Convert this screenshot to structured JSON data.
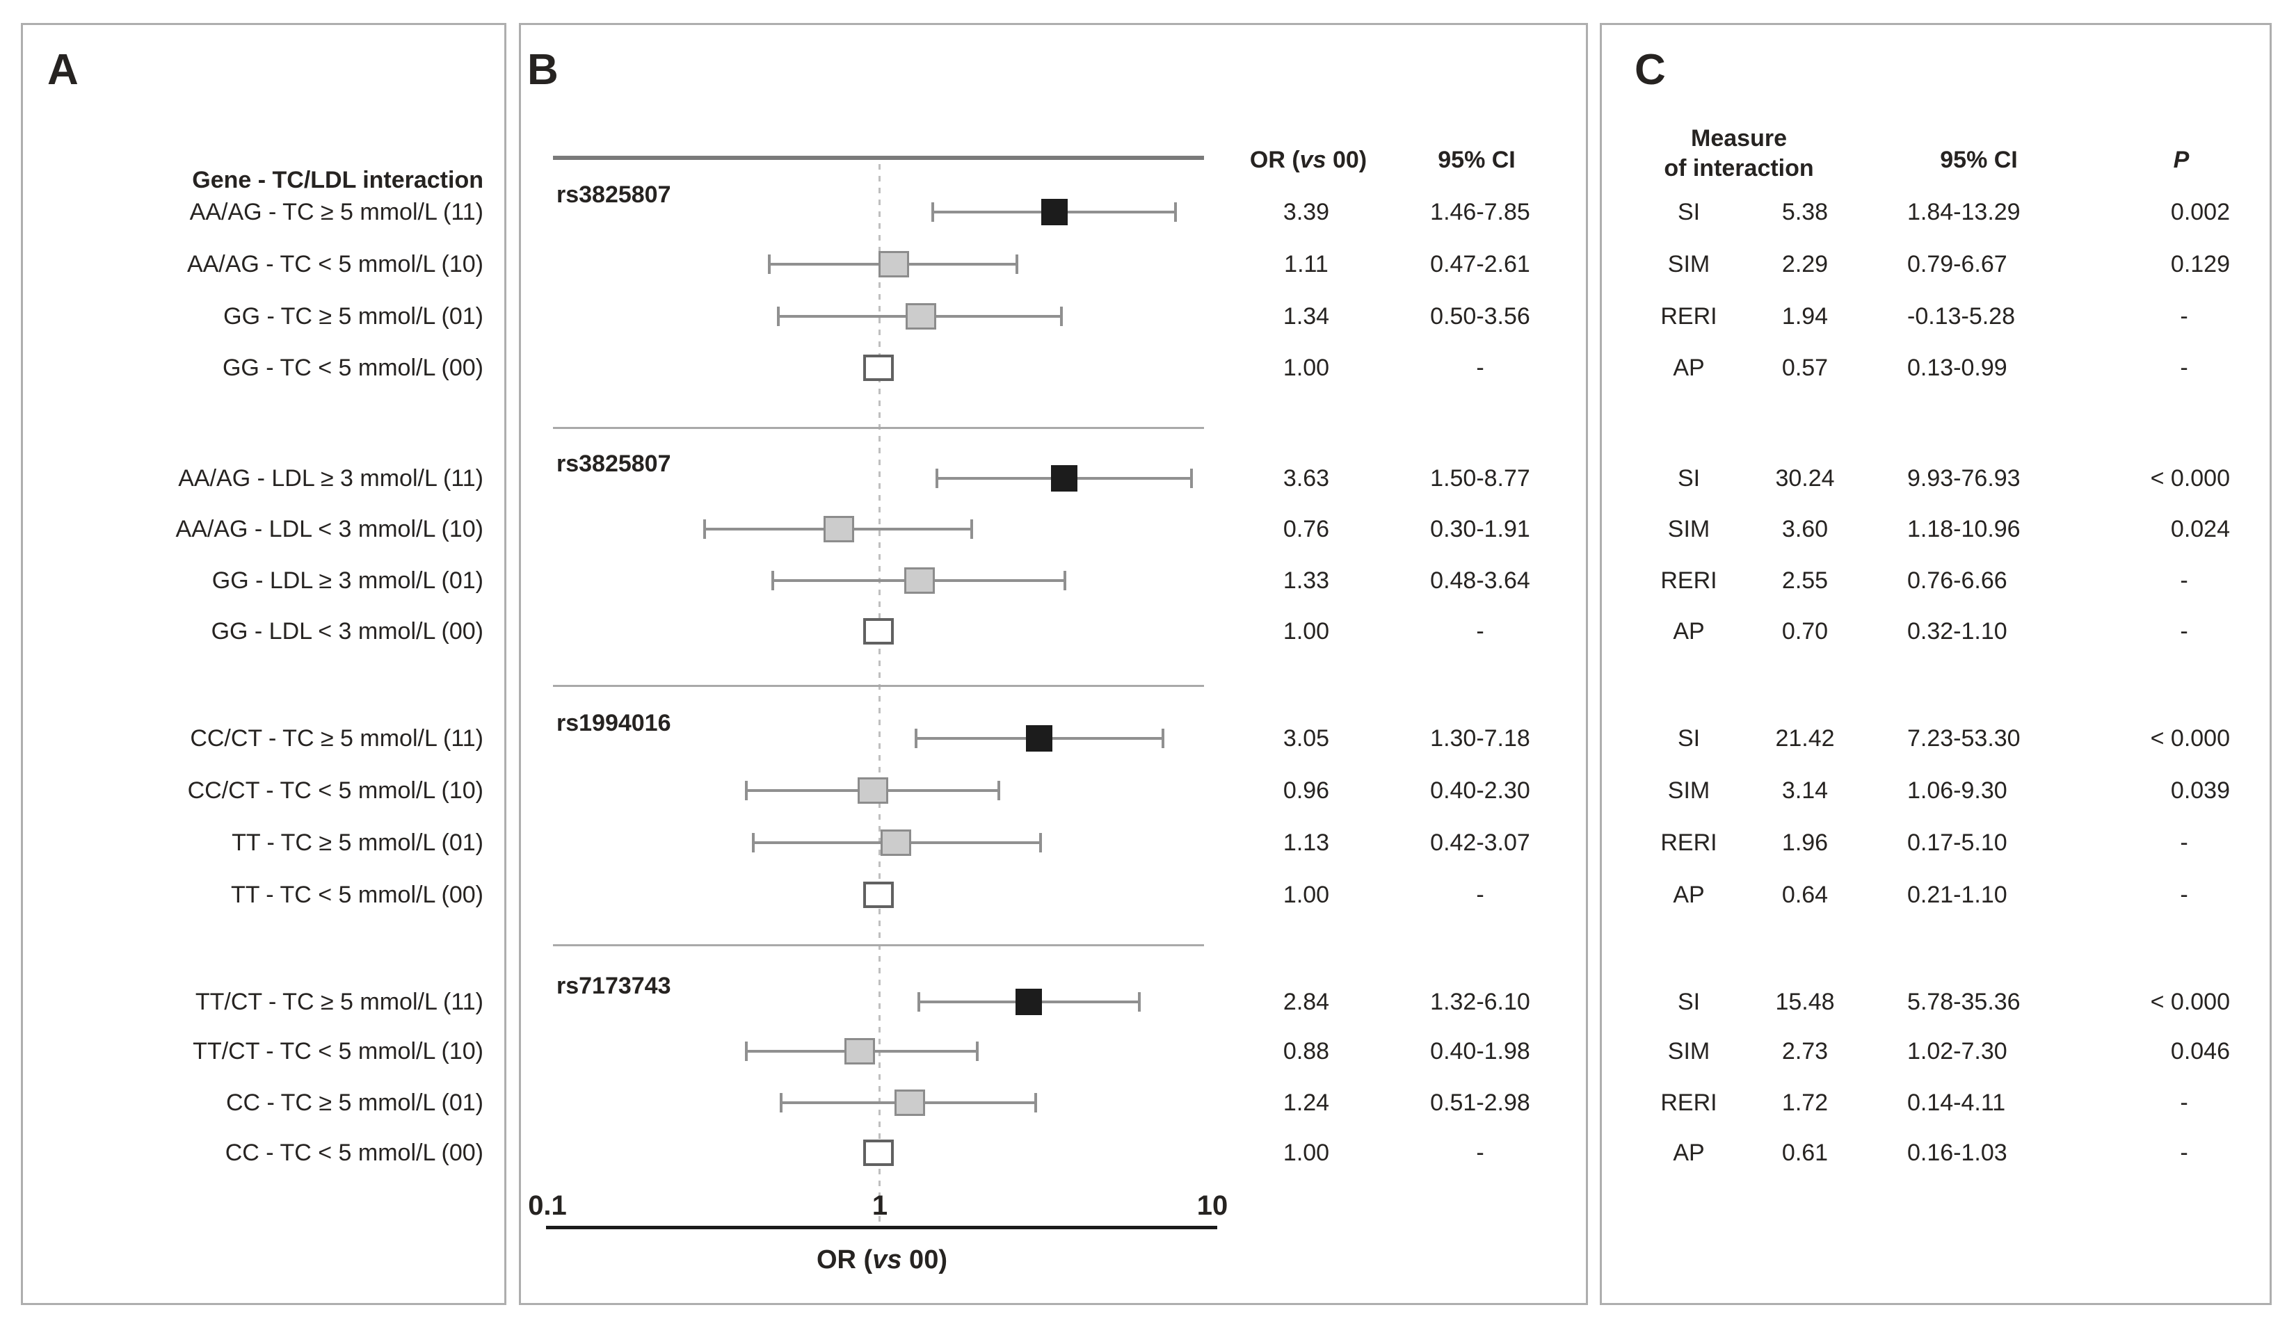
{
  "figure": {
    "panel_a_title": "A",
    "panel_b_title": "B",
    "panel_c_title": "C",
    "panel_a_header": "Gene - TC/LDL interaction",
    "b_or_header": {
      "pre": "OR (",
      "italic": "vs",
      "post": " 00)"
    },
    "b_ci_header": "95% CI",
    "c_header": {
      "line1": "Measure",
      "line2": "of interaction",
      "ci": "95% CI",
      "p": "P"
    }
  },
  "chart_data": {
    "type": "scatter",
    "variant": "forest-plot",
    "x_axis": {
      "scale": "log",
      "min": 0.1,
      "max": 10,
      "ticks": [
        0.1,
        1,
        10
      ],
      "tick_labels": [
        "0.1",
        "1",
        "10"
      ],
      "label": "OR (vs 00)",
      "label_pre": "OR (",
      "label_italic": "vs",
      "label_post": " 00)",
      "reference_line": 1
    },
    "legend": {
      "or_column": "OR (vs 00)",
      "ci_column": "95% CI"
    },
    "groups": [
      {
        "snp": "rs3825807",
        "rows": [
          {
            "label": "AA/AG - TC ≥ 5 mmol/L (11)",
            "or": "3.39",
            "or_value": 3.39,
            "ci": "1.46-7.85",
            "ci_low": 1.46,
            "ci_high": 7.85,
            "marker": "black"
          },
          {
            "label": "AA/AG - TC < 5 mmol/L (10)",
            "or": "1.11",
            "or_value": 1.11,
            "ci": "0.47-2.61",
            "ci_low": 0.47,
            "ci_high": 2.61,
            "marker": "gray"
          },
          {
            "label": "GG - TC ≥ 5 mmol/L (01)",
            "or": "1.34",
            "or_value": 1.34,
            "ci": "0.50-3.56",
            "ci_low": 0.5,
            "ci_high": 3.56,
            "marker": "gray"
          },
          {
            "label": "GG - TC < 5 mmol/L (00)",
            "or": "1.00",
            "or_value": 1.0,
            "ci": "-",
            "ci_low": null,
            "ci_high": null,
            "marker": "white"
          }
        ],
        "measures": [
          {
            "name": "SI",
            "estimate": "5.38",
            "ci": "1.84-13.29",
            "p": "0.002"
          },
          {
            "name": "SIM",
            "estimate": "2.29",
            "ci": "0.79-6.67",
            "p": "0.129"
          },
          {
            "name": "RERI",
            "estimate": "1.94",
            "ci": "-0.13-5.28",
            "p": "-"
          },
          {
            "name": "AP",
            "estimate": "0.57",
            "ci": "0.13-0.99",
            "p": "-"
          }
        ]
      },
      {
        "snp": "rs3825807",
        "rows": [
          {
            "label": "AA/AG - LDL ≥ 3 mmol/L (11)",
            "or": "3.63",
            "or_value": 3.63,
            "ci": "1.50-8.77",
            "ci_low": 1.5,
            "ci_high": 8.77,
            "marker": "black"
          },
          {
            "label": "AA/AG - LDL < 3 mmol/L (10)",
            "or": "0.76",
            "or_value": 0.76,
            "ci": "0.30-1.91",
            "ci_low": 0.3,
            "ci_high": 1.91,
            "marker": "gray"
          },
          {
            "label": "GG - LDL ≥ 3 mmol/L (01)",
            "or": "1.33",
            "or_value": 1.33,
            "ci": "0.48-3.64",
            "ci_low": 0.48,
            "ci_high": 3.64,
            "marker": "gray"
          },
          {
            "label": "GG - LDL < 3 mmol/L (00)",
            "or": "1.00",
            "or_value": 1.0,
            "ci": "-",
            "ci_low": null,
            "ci_high": null,
            "marker": "white"
          }
        ],
        "measures": [
          {
            "name": "SI",
            "estimate": "30.24",
            "ci": "9.93-76.93",
            "p": "< 0.000"
          },
          {
            "name": "SIM",
            "estimate": "3.60",
            "ci": "1.18-10.96",
            "p": "0.024"
          },
          {
            "name": "RERI",
            "estimate": "2.55",
            "ci": "0.76-6.66",
            "p": "-"
          },
          {
            "name": "AP",
            "estimate": "0.70",
            "ci": "0.32-1.10",
            "p": "-"
          }
        ]
      },
      {
        "snp": "rs1994016",
        "rows": [
          {
            "label": "CC/CT - TC ≥ 5 mmol/L (11)",
            "or": "3.05",
            "or_value": 3.05,
            "ci": "1.30-7.18",
            "ci_low": 1.3,
            "ci_high": 7.18,
            "marker": "black"
          },
          {
            "label": "CC/CT - TC < 5 mmol/L (10)",
            "or": "0.96",
            "or_value": 0.96,
            "ci": "0.40-2.30",
            "ci_low": 0.4,
            "ci_high": 2.3,
            "marker": "gray"
          },
          {
            "label": "TT - TC ≥ 5 mmol/L (01)",
            "or": "1.13",
            "or_value": 1.13,
            "ci": "0.42-3.07",
            "ci_low": 0.42,
            "ci_high": 3.07,
            "marker": "gray"
          },
          {
            "label": "TT - TC < 5 mmol/L (00)",
            "or": "1.00",
            "or_value": 1.0,
            "ci": "-",
            "ci_low": null,
            "ci_high": null,
            "marker": "white"
          }
        ],
        "measures": [
          {
            "name": "SI",
            "estimate": "21.42",
            "ci": "7.23-53.30",
            "p": "< 0.000"
          },
          {
            "name": "SIM",
            "estimate": "3.14",
            "ci": "1.06-9.30",
            "p": "0.039"
          },
          {
            "name": "RERI",
            "estimate": "1.96",
            "ci": "0.17-5.10",
            "p": "-"
          },
          {
            "name": "AP",
            "estimate": "0.64",
            "ci": "0.21-1.10",
            "p": "-"
          }
        ]
      },
      {
        "snp": "rs7173743",
        "rows": [
          {
            "label": "TT/CT - TC ≥ 5 mmol/L (11)",
            "or": "2.84",
            "or_value": 2.84,
            "ci": "1.32-6.10",
            "ci_low": 1.32,
            "ci_high": 6.1,
            "marker": "black"
          },
          {
            "label": "TT/CT - TC < 5 mmol/L (10)",
            "or": "0.88",
            "or_value": 0.88,
            "ci": "0.40-1.98",
            "ci_low": 0.4,
            "ci_high": 1.98,
            "marker": "gray"
          },
          {
            "label": "CC - TC ≥ 5 mmol/L (01)",
            "or": "1.24",
            "or_value": 1.24,
            "ci": "0.51-2.98",
            "ci_low": 0.51,
            "ci_high": 2.98,
            "marker": "gray"
          },
          {
            "label": "CC - TC < 5 mmol/L (00)",
            "or": "1.00",
            "or_value": 1.0,
            "ci": "-",
            "ci_low": null,
            "ci_high": null,
            "marker": "white"
          }
        ],
        "measures": [
          {
            "name": "SI",
            "estimate": "15.48",
            "ci": "5.78-35.36",
            "p": "< 0.000"
          },
          {
            "name": "SIM",
            "estimate": "2.73",
            "ci": "1.02-7.30",
            "p": "0.046"
          },
          {
            "name": "RERI",
            "estimate": "1.72",
            "ci": "0.14-4.11",
            "p": "-"
          },
          {
            "name": "AP",
            "estimate": "0.61",
            "ci": "0.16-1.03",
            "p": "-"
          }
        ]
      }
    ]
  }
}
